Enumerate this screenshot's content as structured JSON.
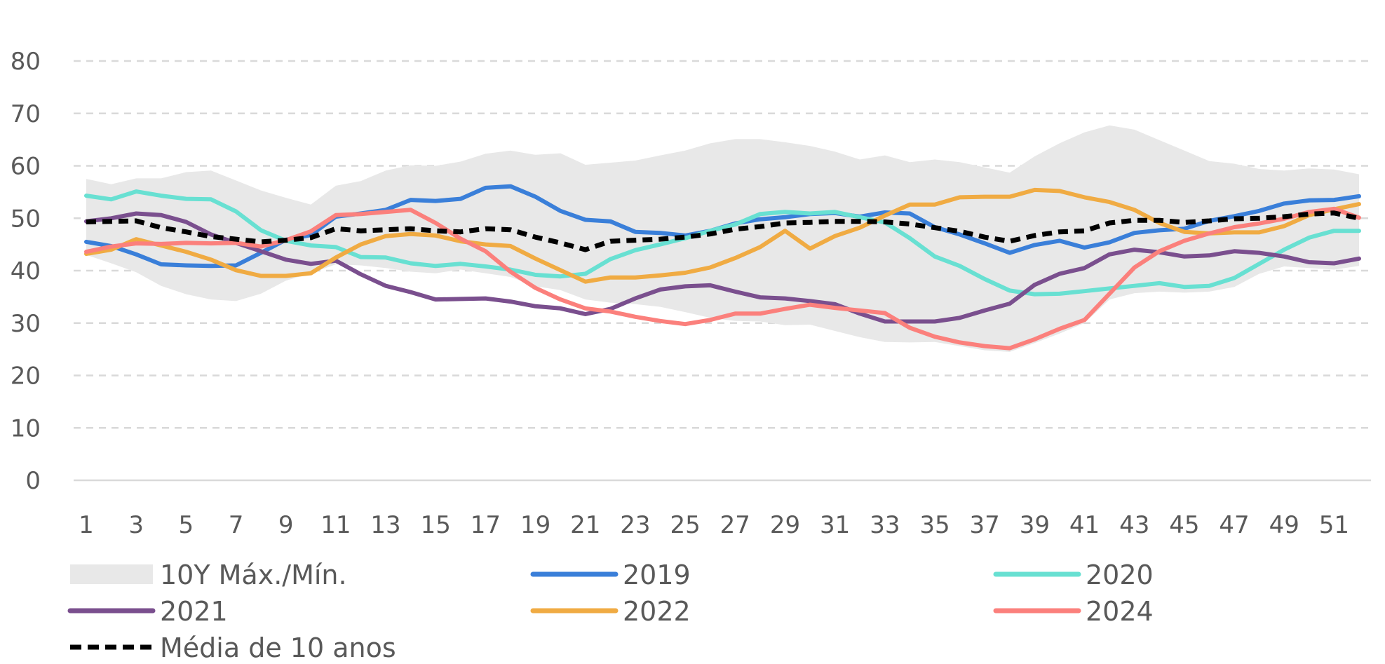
{
  "chart_data": {
    "type": "line",
    "title": "",
    "xlabel": "",
    "ylabel": "",
    "ylim": [
      0,
      80
    ],
    "yticks": [
      0,
      10,
      20,
      30,
      40,
      50,
      60,
      70,
      80
    ],
    "xlim": [
      1,
      52
    ],
    "xticks": [
      1,
      3,
      5,
      7,
      9,
      11,
      13,
      15,
      17,
      19,
      21,
      23,
      25,
      27,
      29,
      31,
      33,
      35,
      37,
      39,
      41,
      43,
      45,
      47,
      49,
      51
    ],
    "grid": "horizontal dashed",
    "legend_position": "bottom",
    "band": {
      "name": "10Y Máx./Mín.",
      "color": "#e8e8e8",
      "upper": [
        57.5,
        56.5,
        57.6,
        57.6,
        58.8,
        59.1,
        57.2,
        55.3,
        53.9,
        52.6,
        56.2,
        57.1,
        59.1,
        60.1,
        60.0,
        60.8,
        62.3,
        62.9,
        62.1,
        62.4,
        60.2,
        60.6,
        61.0,
        62.0,
        62.9,
        64.3,
        65.1,
        65.1,
        64.5,
        63.8,
        62.7,
        61.2,
        62.0,
        60.7,
        61.2,
        60.7,
        59.7,
        58.7,
        61.8,
        64.3,
        66.4,
        67.7,
        66.9,
        64.9,
        62.9,
        60.9,
        60.4,
        59.4,
        59.1,
        59.5,
        59.3,
        58.4
      ],
      "lower": [
        43.0,
        41.4,
        39.7,
        37.1,
        35.5,
        34.5,
        34.2,
        35.6,
        38.1,
        39.5,
        41.2,
        41.0,
        40.5,
        39.8,
        39.5,
        40.2,
        39.5,
        38.8,
        37.0,
        36.3,
        34.5,
        33.9,
        33.6,
        33.1,
        32.1,
        31.0,
        30.4,
        30.3,
        29.6,
        29.7,
        28.5,
        27.3,
        26.4,
        26.3,
        26.4,
        25.6,
        24.8,
        24.5,
        26.2,
        28.0,
        30.0,
        34.5,
        35.7,
        36.0,
        35.8,
        36.0,
        36.9,
        39.4,
        40.8,
        40.5,
        40.2,
        40.9
      ]
    },
    "series": [
      {
        "name": "2019",
        "color": "#3a7fd9",
        "dash": "solid",
        "values": [
          45.5,
          44.7,
          43.1,
          41.2,
          41.0,
          40.9,
          41.0,
          43.4,
          45.9,
          46.8,
          50.3,
          50.9,
          51.6,
          53.5,
          53.3,
          53.7,
          55.8,
          56.1,
          54.1,
          51.4,
          49.7,
          49.4,
          47.4,
          47.2,
          46.7,
          47.6,
          49.0,
          49.8,
          50.2,
          50.8,
          51.0,
          50.3,
          51.1,
          50.9,
          48.3,
          46.9,
          45.2,
          43.4,
          44.9,
          45.7,
          44.4,
          45.4,
          47.2,
          47.7,
          48.0,
          49.5,
          50.4,
          51.4,
          52.8,
          53.4,
          53.5,
          54.2
        ]
      },
      {
        "name": "2020",
        "color": "#68e0d2",
        "dash": "solid",
        "values": [
          54.3,
          53.6,
          55.1,
          54.3,
          53.7,
          53.6,
          51.3,
          47.7,
          45.7,
          44.8,
          44.5,
          42.6,
          42.5,
          41.4,
          40.9,
          41.3,
          40.8,
          40.2,
          39.2,
          38.9,
          39.4,
          42.2,
          43.9,
          45.0,
          46.2,
          47.6,
          48.8,
          50.8,
          51.2,
          50.9,
          51.2,
          50.2,
          49.2,
          46.2,
          42.7,
          40.9,
          38.4,
          36.2,
          35.5,
          35.6,
          36.1,
          36.6,
          37.1,
          37.6,
          36.9,
          37.1,
          38.6,
          41.3,
          44.0,
          46.3,
          47.6,
          47.6
        ]
      },
      {
        "name": "2021",
        "color": "#7a4f8e",
        "dash": "solid",
        "values": [
          49.4,
          50.0,
          50.9,
          50.6,
          49.3,
          46.9,
          45.3,
          43.7,
          42.1,
          41.3,
          41.9,
          39.3,
          37.1,
          35.9,
          34.5,
          34.6,
          34.7,
          34.1,
          33.2,
          32.8,
          31.7,
          32.7,
          34.7,
          36.4,
          37.0,
          37.2,
          36.0,
          34.9,
          34.7,
          34.2,
          33.6,
          31.8,
          30.3,
          30.3,
          30.3,
          31.0,
          32.4,
          33.7,
          37.3,
          39.4,
          40.5,
          43.1,
          44.0,
          43.5,
          42.7,
          42.9,
          43.7,
          43.4,
          42.7,
          41.6,
          41.4,
          42.3
        ]
      },
      {
        "name": "2022",
        "color": "#f0ab43",
        "dash": "solid",
        "values": [
          43.2,
          44.0,
          46.0,
          44.8,
          43.6,
          42.1,
          40.1,
          39.0,
          39.0,
          39.5,
          42.5,
          45.0,
          46.6,
          47.0,
          46.7,
          45.6,
          45.0,
          44.7,
          42.3,
          40.1,
          37.9,
          38.7,
          38.7,
          39.1,
          39.6,
          40.6,
          42.4,
          44.5,
          47.6,
          44.2,
          46.6,
          48.2,
          50.5,
          52.6,
          52.6,
          54.0,
          54.1,
          54.1,
          55.4,
          55.2,
          54.0,
          53.1,
          51.6,
          49.1,
          47.4,
          47.1,
          47.3,
          47.3,
          48.5,
          50.6,
          51.7,
          52.7
        ]
      },
      {
        "name": "2024",
        "color": "#fb807c",
        "dash": "solid",
        "values": [
          43.6,
          44.6,
          45.2,
          45.1,
          45.3,
          45.2,
          45.3,
          44.6,
          45.8,
          47.5,
          50.6,
          50.8,
          51.2,
          51.6,
          49.1,
          46.1,
          43.7,
          39.8,
          36.7,
          34.5,
          32.8,
          32.2,
          31.2,
          30.4,
          29.8,
          30.6,
          31.8,
          31.8,
          32.7,
          33.5,
          32.9,
          32.4,
          31.9,
          29.1,
          27.4,
          26.3,
          25.6,
          25.2,
          26.9,
          28.9,
          30.6,
          35.6,
          40.6,
          43.7,
          45.7,
          47.1,
          48.3,
          49.0,
          49.9,
          51.2,
          51.8,
          50.1
        ]
      },
      {
        "name": "Média de 10 anos",
        "color": "#000000",
        "dash": "dashed",
        "values": [
          49.3,
          49.4,
          49.5,
          48.2,
          47.4,
          46.5,
          46.0,
          45.5,
          45.8,
          46.3,
          48.0,
          47.6,
          47.8,
          48.0,
          47.6,
          47.4,
          48.0,
          47.8,
          46.4,
          45.3,
          44.0,
          45.6,
          45.8,
          46.0,
          46.4,
          47.0,
          47.9,
          48.4,
          49.1,
          49.2,
          49.4,
          49.4,
          49.3,
          48.9,
          48.2,
          47.5,
          46.4,
          45.6,
          46.7,
          47.4,
          47.6,
          49.1,
          49.6,
          49.6,
          49.2,
          49.5,
          49.9,
          50.0,
          50.3,
          50.8,
          51.0,
          50.0
        ]
      }
    ]
  },
  "legend": [
    {
      "id": "band",
      "label": "10Y Máx./Mín."
    },
    {
      "id": "2019",
      "label": "2019"
    },
    {
      "id": "2020",
      "label": "2020"
    },
    {
      "id": "2021",
      "label": "2021"
    },
    {
      "id": "2022",
      "label": "2022"
    },
    {
      "id": "2024",
      "label": "2024"
    },
    {
      "id": "avg",
      "label": "Média de 10 anos"
    }
  ]
}
